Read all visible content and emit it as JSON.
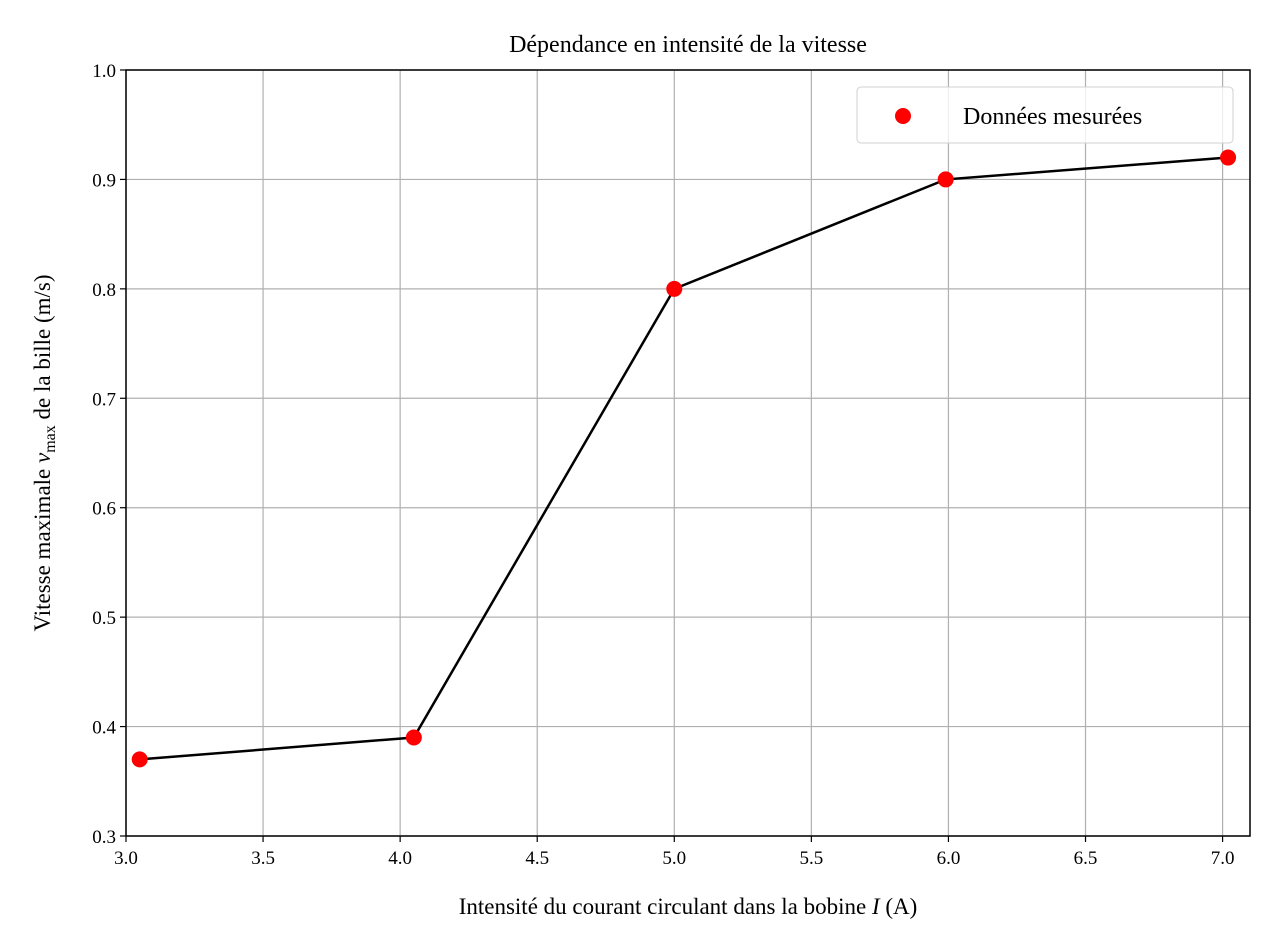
{
  "chart_data": {
    "type": "scatter",
    "title": "Dépendance en intensité de la vitesse",
    "xlabel": [
      "Intensité du courant circulant dans la bobine ",
      "I",
      " (A)"
    ],
    "ylabel": [
      "Vitesse maximale ",
      "v",
      "max",
      " de la bille (m/s)"
    ],
    "xlim": [
      3.0,
      7.1
    ],
    "xticks": [
      {
        "value": 3,
        "label": "3.0"
      },
      3.5,
      {
        "value": 4,
        "label": "4.0"
      },
      4.5,
      {
        "value": 5,
        "label": "5.0"
      },
      5.5,
      {
        "value": 6,
        "label": "6.0"
      },
      6.5,
      {
        "value": 7,
        "label": "7.0"
      }
    ],
    "ylim": [
      0.3,
      1.0
    ],
    "yticks": [
      0.3,
      0.4,
      0.5,
      0.6,
      0.7,
      0.8,
      0.9,
      {
        "value": 1,
        "label": "1.0"
      }
    ],
    "grid": true,
    "legend": "upper right",
    "line_color": "#000000",
    "series": [
      {
        "name": "Données mesurées",
        "color": "#ff0000",
        "x": [
          3.05,
          4.05,
          5.0,
          5.99,
          7.02
        ],
        "values": [
          0.37,
          0.39,
          0.8,
          0.9,
          0.92
        ]
      }
    ]
  }
}
